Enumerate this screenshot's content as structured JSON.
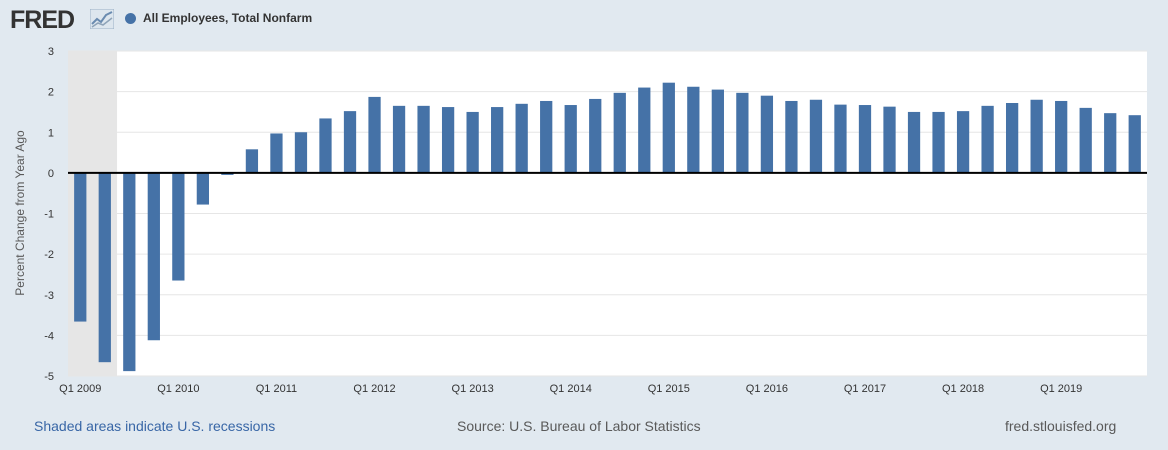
{
  "header": {
    "logo_text": "FRED",
    "logo_icon": "fred-chart-line-icon",
    "series_title": "All Employees, Total Nonfarm",
    "series_color": "#4572a7"
  },
  "footer": {
    "recession_note": "Shaded areas indicate U.S. recessions",
    "source": "Source: U.S. Bureau of Labor Statistics",
    "site": "fred.stlouisfed.org"
  },
  "colors": {
    "bar": "#4572a7",
    "plot_background": "#ffffff",
    "recession_shade": "#e6e6e6",
    "gridline": "#e6e6e6",
    "zero_line": "#000000"
  },
  "chart_data": {
    "type": "bar",
    "ylabel": "Percent Change from Year Ago",
    "ylim": [
      -5,
      3
    ],
    "yticks": [
      3,
      2,
      1,
      0,
      -1,
      -2,
      -3,
      -4,
      -5
    ],
    "grid": true,
    "legend": "top-left",
    "recessions": [
      {
        "start": "Q1 2009",
        "end": "Q2 2009"
      }
    ],
    "x_tick_labels": [
      {
        "label": "Q1 2009",
        "index": 0
      },
      {
        "label": "Q1 2010",
        "index": 4
      },
      {
        "label": "Q1 2011",
        "index": 8
      },
      {
        "label": "Q1 2012",
        "index": 12
      },
      {
        "label": "Q1 2013",
        "index": 16
      },
      {
        "label": "Q1 2014",
        "index": 20
      },
      {
        "label": "Q1 2015",
        "index": 24
      },
      {
        "label": "Q1 2016",
        "index": 28
      },
      {
        "label": "Q1 2017",
        "index": 32
      },
      {
        "label": "Q1 2018",
        "index": 36
      },
      {
        "label": "Q1 2019",
        "index": 40
      }
    ],
    "categories": [
      "Q1 2009",
      "Q2 2009",
      "Q3 2009",
      "Q4 2009",
      "Q1 2010",
      "Q2 2010",
      "Q3 2010",
      "Q4 2010",
      "Q1 2011",
      "Q2 2011",
      "Q3 2011",
      "Q4 2011",
      "Q1 2012",
      "Q2 2012",
      "Q3 2012",
      "Q4 2012",
      "Q1 2013",
      "Q2 2013",
      "Q3 2013",
      "Q4 2013",
      "Q1 2014",
      "Q2 2014",
      "Q3 2014",
      "Q4 2014",
      "Q1 2015",
      "Q2 2015",
      "Q3 2015",
      "Q4 2015",
      "Q1 2016",
      "Q2 2016",
      "Q3 2016",
      "Q4 2016",
      "Q1 2017",
      "Q2 2017",
      "Q3 2017",
      "Q4 2017",
      "Q1 2018",
      "Q2 2018",
      "Q3 2018",
      "Q4 2018",
      "Q1 2019",
      "Q2 2019",
      "Q3 2019",
      "Q4 2019"
    ],
    "series": [
      {
        "name": "All Employees, Total Nonfarm",
        "values": [
          -3.66,
          -4.66,
          -4.88,
          -4.12,
          -2.65,
          -0.78,
          -0.05,
          0.58,
          0.97,
          1.0,
          1.34,
          1.52,
          1.87,
          1.65,
          1.65,
          1.62,
          1.5,
          1.62,
          1.7,
          1.77,
          1.67,
          1.82,
          1.97,
          2.1,
          2.22,
          2.12,
          2.05,
          1.97,
          1.9,
          1.77,
          1.8,
          1.68,
          1.67,
          1.63,
          1.5,
          1.5,
          1.52,
          1.65,
          1.72,
          1.8,
          1.77,
          1.6,
          1.47,
          1.42
        ]
      }
    ]
  }
}
